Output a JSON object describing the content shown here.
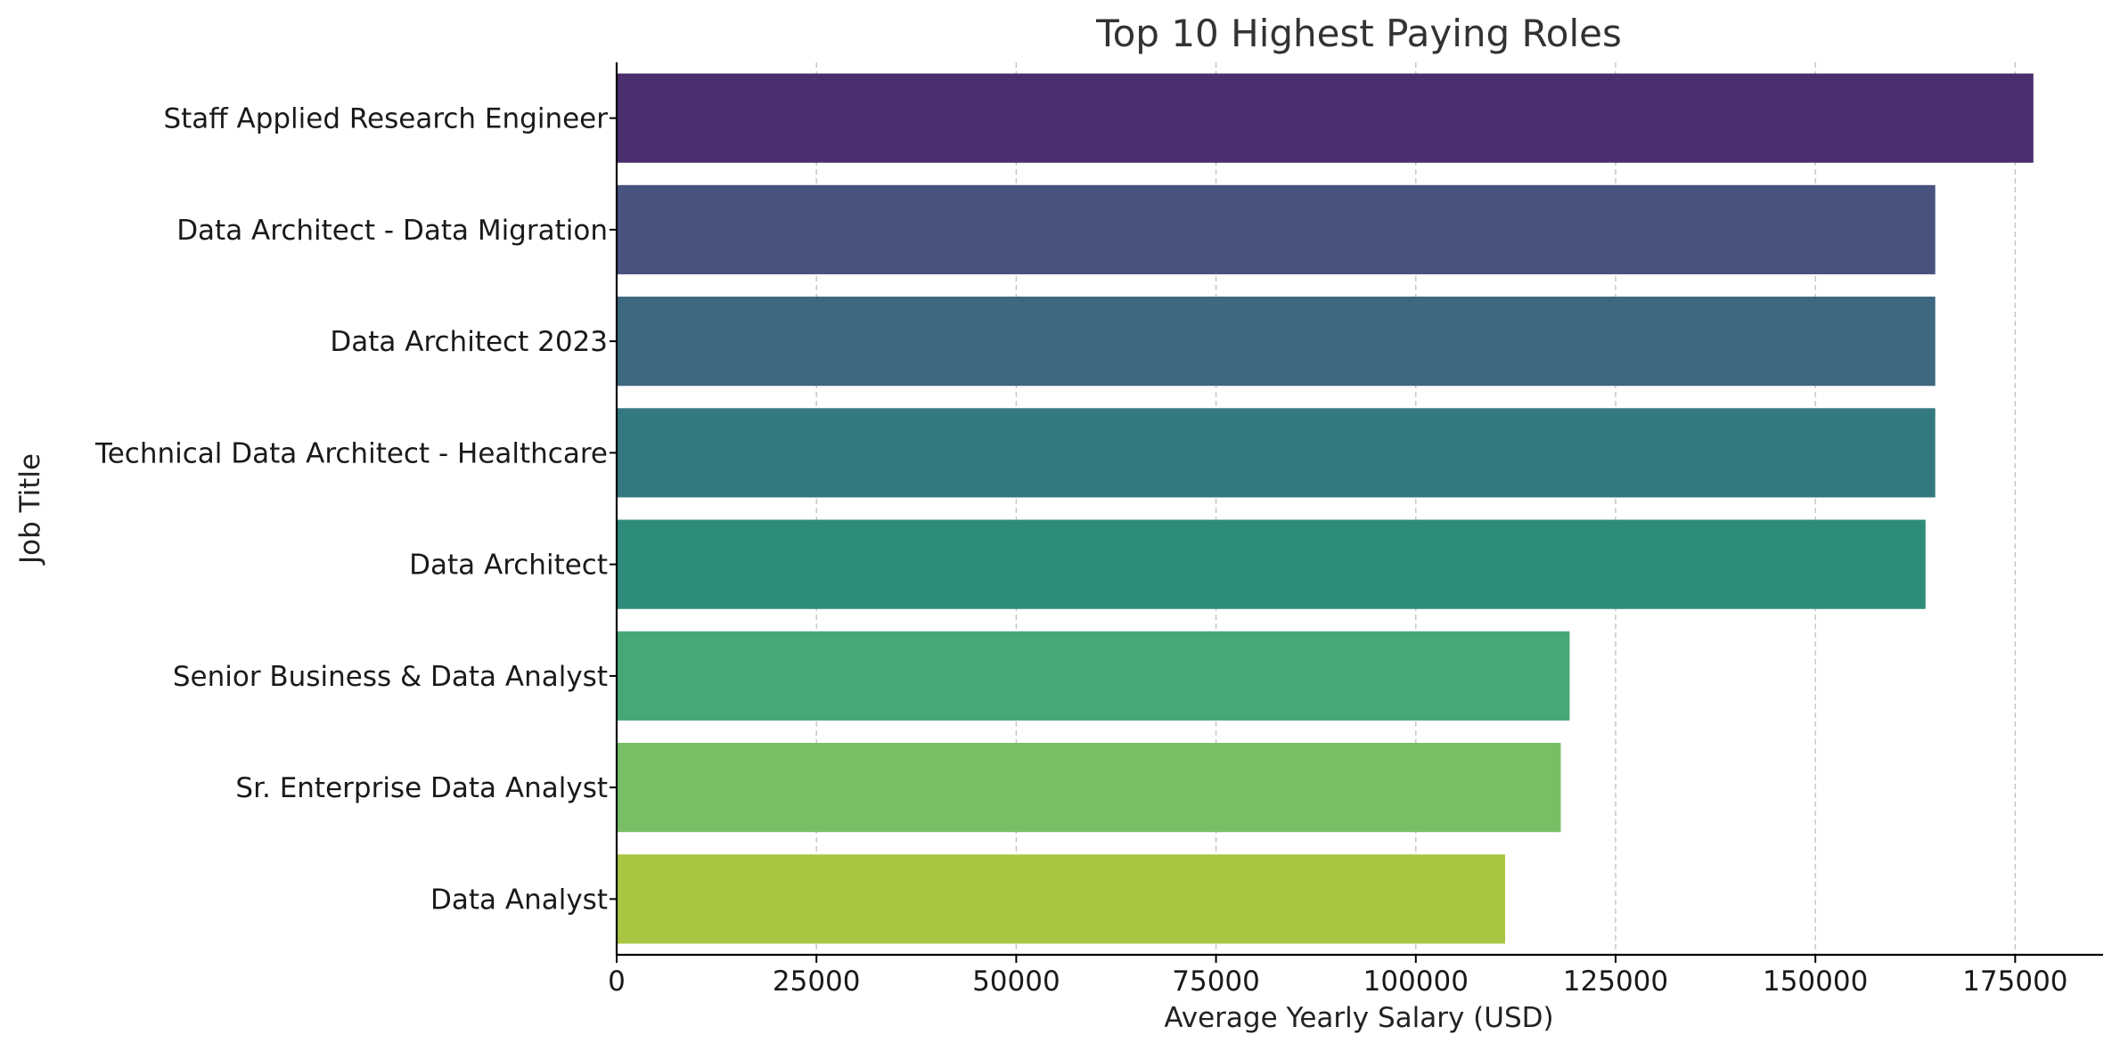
{
  "chart_data": {
    "type": "bar",
    "orientation": "horizontal",
    "title": "Top 10 Highest Paying Roles",
    "xlabel": "Average Yearly Salary (USD)",
    "ylabel": "Job Title",
    "categories": [
      "Staff Applied Research Engineer",
      "Data Architect - Data Migration",
      "Data Architect 2023",
      "Technical Data Architect - Healthcare",
      "Data Architect",
      "Senior Business & Data Analyst",
      "Sr. Enterprise Data Analyst",
      "Data Analyst"
    ],
    "values": [
      177283,
      165000,
      165000,
      165000,
      163782,
      119250,
      118140,
      111175
    ],
    "colors": [
      "#4b2e6d",
      "#47527e",
      "#3e6780",
      "#337980",
      "#2e8c7b",
      "#47a877",
      "#78be65",
      "#a8c641"
    ],
    "xlim": [
      0,
      186000
    ],
    "xticks": [
      0,
      25000,
      50000,
      75000,
      100000,
      125000,
      150000,
      175000
    ],
    "grid": "vertical dashed",
    "legend": "none"
  }
}
